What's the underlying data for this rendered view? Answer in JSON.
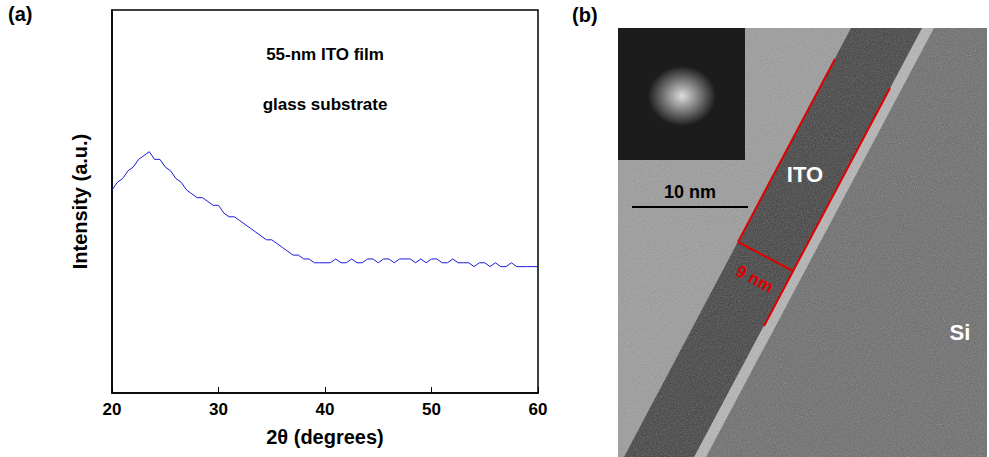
{
  "chart_data": {
    "type": "line",
    "panel": "(a)",
    "annotations": [
      "55-nm ITO film",
      "glass substrate"
    ],
    "x_label": "2θ (degrees)",
    "y_label": "Intensity (a.u.)",
    "x": [
      20,
      20.5,
      21,
      21.5,
      22,
      22.5,
      23,
      23.5,
      24,
      24.5,
      25,
      25.5,
      26,
      26.5,
      27,
      27.5,
      28,
      28.5,
      29,
      29.5,
      30,
      30.5,
      31,
      31.5,
      32,
      32.5,
      33,
      33.5,
      34,
      34.5,
      35,
      35.5,
      36,
      36.5,
      37,
      37.5,
      38,
      38.5,
      39,
      39.5,
      40,
      40.5,
      41,
      41.5,
      42,
      42.5,
      43,
      43.5,
      44,
      44.5,
      45,
      45.5,
      46,
      46.5,
      47,
      47.5,
      48,
      48.5,
      49,
      49.5,
      50,
      50.5,
      51,
      51.5,
      52,
      52.5,
      53,
      53.5,
      54,
      54.5,
      55,
      55.5,
      56,
      56.5,
      57,
      57.5,
      58,
      58.5,
      59,
      59.5,
      60
    ],
    "values": [
      53,
      55,
      56,
      58,
      59,
      61,
      62,
      63,
      61,
      61,
      59,
      58,
      56,
      55,
      53,
      52,
      51,
      51,
      50,
      49,
      49,
      47,
      46,
      46,
      45,
      44,
      43,
      42,
      41,
      40,
      40,
      39,
      38,
      37,
      36,
      36,
      35,
      35,
      34,
      34,
      34,
      34,
      35,
      34,
      34,
      35,
      34,
      34,
      35,
      35,
      34,
      35,
      35,
      34,
      35,
      35,
      35,
      34,
      35,
      34,
      35,
      35,
      34,
      34,
      35,
      34,
      34,
      34,
      33,
      34,
      34,
      33,
      34,
      33,
      33,
      34,
      33,
      33,
      33,
      33,
      33
    ],
    "color": "#1a1ad6",
    "line_style": "solid",
    "xlim": [
      20,
      60
    ],
    "xticks": [
      20,
      30,
      40,
      50,
      60
    ],
    "ylim": [
      0,
      100
    ],
    "grid": false,
    "tick_labels": "x"
  },
  "image": {
    "panel": "(b)",
    "labels": [
      "ITO",
      "Si"
    ],
    "scale_bar": "10 nm",
    "thickness": "9 nm"
  }
}
